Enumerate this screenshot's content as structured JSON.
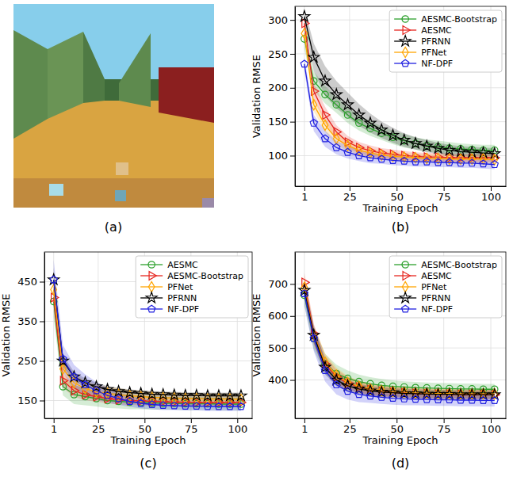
{
  "chart_data": [
    {
      "type": "image",
      "caption": "(a)"
    },
    {
      "type": "line",
      "caption": "(b)",
      "x_label": "Training Epoch",
      "y_label": "Validation RMSE",
      "x": [
        1,
        6,
        12,
        18,
        24,
        30,
        36,
        42,
        48,
        54,
        60,
        66,
        72,
        78,
        84,
        90,
        96,
        102
      ],
      "xlim": [
        -4,
        108
      ],
      "xticks": [
        1,
        25,
        50,
        75,
        100
      ],
      "ylim": [
        55,
        320
      ],
      "yticks": [
        100,
        150,
        200,
        250,
        300
      ],
      "grid": true,
      "legend": "upper right",
      "series": [
        {
          "name": "AESMC-Bootstrap",
          "color": "#2ca02c",
          "marker": "circle",
          "values": [
            272,
            210,
            190,
            175,
            160,
            148,
            140,
            133,
            127,
            122,
            118,
            115,
            113,
            111,
            110,
            109,
            108,
            108
          ],
          "error": [
            15,
            14,
            13,
            12,
            12,
            11,
            11,
            10,
            10,
            10,
            9,
            9,
            9,
            9,
            8,
            8,
            8,
            8
          ]
        },
        {
          "name": "AESMC",
          "color": "#e6261f",
          "marker": "triangle-right",
          "values": [
            295,
            195,
            160,
            135,
            120,
            112,
            107,
            104,
            102,
            100,
            99,
            98,
            98,
            97,
            97,
            97,
            97,
            97
          ],
          "error": [
            10,
            12,
            12,
            10,
            9,
            8,
            8,
            7,
            7,
            7,
            6,
            6,
            6,
            6,
            6,
            6,
            6,
            6
          ]
        },
        {
          "name": "PFRNN",
          "color": "#000000",
          "marker": "star",
          "values": [
            305,
            245,
            210,
            190,
            175,
            160,
            148,
            138,
            130,
            123,
            118,
            114,
            111,
            108,
            106,
            105,
            104,
            103
          ],
          "error": [
            12,
            20,
            22,
            20,
            18,
            16,
            14,
            12,
            11,
            10,
            9,
            9,
            8,
            8,
            8,
            8,
            8,
            8
          ]
        },
        {
          "name": "PFNet",
          "color": "#ffa500",
          "marker": "diamond",
          "values": [
            280,
            175,
            145,
            125,
            115,
            108,
            104,
            101,
            99,
            98,
            97,
            96,
            96,
            95,
            95,
            95,
            95,
            94
          ],
          "error": [
            10,
            10,
            10,
            9,
            8,
            7,
            7,
            6,
            6,
            6,
            6,
            6,
            6,
            6,
            6,
            6,
            6,
            6
          ]
        },
        {
          "name": "NF-DPF",
          "color": "#2020e0",
          "marker": "pentagon",
          "values": [
            235,
            148,
            125,
            112,
            105,
            100,
            97,
            95,
            93,
            92,
            91,
            91,
            90,
            90,
            89,
            89,
            88,
            87
          ],
          "error": [
            10,
            12,
            12,
            10,
            9,
            8,
            8,
            7,
            7,
            7,
            7,
            7,
            7,
            7,
            7,
            7,
            7,
            7
          ]
        }
      ]
    },
    {
      "type": "line",
      "caption": "(c)",
      "x_label": "Training Epoch",
      "y_label": "Validation RMSE",
      "x": [
        1,
        6,
        12,
        18,
        24,
        30,
        36,
        42,
        48,
        54,
        60,
        66,
        72,
        78,
        84,
        90,
        96,
        102
      ],
      "xlim": [
        -4,
        108
      ],
      "xticks": [
        1,
        25,
        50,
        75,
        100
      ],
      "ylim": [
        105,
        525
      ],
      "yticks": [
        150,
        250,
        350,
        450
      ],
      "grid": true,
      "legend": "upper right",
      "series": [
        {
          "name": "AESMC",
          "color": "#2ca02c",
          "marker": "circle",
          "values": [
            400,
            185,
            165,
            160,
            155,
            150,
            148,
            146,
            145,
            144,
            143,
            143,
            142,
            142,
            142,
            141,
            141,
            141
          ],
          "error": [
            40,
            22,
            24,
            22,
            20,
            19,
            18,
            18,
            17,
            17,
            16,
            16,
            16,
            16,
            16,
            16,
            16,
            16
          ]
        },
        {
          "name": "AESMC-Bootstrap",
          "color": "#e6261f",
          "marker": "triangle-right",
          "values": [
            410,
            200,
            175,
            165,
            160,
            155,
            152,
            150,
            149,
            148,
            147,
            146,
            146,
            145,
            145,
            145,
            145,
            145
          ],
          "error": [
            35,
            18,
            16,
            14,
            13,
            12,
            12,
            11,
            11,
            11,
            10,
            10,
            10,
            10,
            10,
            10,
            10,
            10
          ]
        },
        {
          "name": "PFNet",
          "color": "#ffa500",
          "marker": "diamond",
          "values": [
            430,
            230,
            195,
            180,
            172,
            168,
            165,
            162,
            160,
            158,
            157,
            156,
            155,
            155,
            154,
            154,
            154,
            153
          ],
          "error": [
            40,
            25,
            22,
            20,
            18,
            17,
            16,
            15,
            15,
            14,
            14,
            14,
            14,
            14,
            14,
            14,
            14,
            14
          ]
        },
        {
          "name": "PFRNN",
          "color": "#000000",
          "marker": "star",
          "values": [
            455,
            250,
            210,
            195,
            185,
            178,
            173,
            170,
            168,
            166,
            165,
            164,
            163,
            163,
            162,
            162,
            162,
            162
          ],
          "error": [
            30,
            15,
            12,
            11,
            10,
            9,
            9,
            8,
            8,
            8,
            8,
            8,
            8,
            8,
            8,
            8,
            8,
            8
          ]
        },
        {
          "name": "NF-DPF",
          "color": "#2020e0",
          "marker": "pentagon",
          "values": [
            455,
            255,
            210,
            190,
            175,
            163,
            155,
            148,
            143,
            140,
            138,
            137,
            136,
            136,
            135,
            135,
            135,
            135
          ],
          "error": [
            50,
            35,
            30,
            26,
            22,
            18,
            16,
            14,
            13,
            12,
            12,
            11,
            11,
            11,
            11,
            11,
            11,
            11
          ]
        }
      ]
    },
    {
      "type": "line",
      "caption": "(d)",
      "x_label": "Training Epoch",
      "y_label": "Validation RMSE",
      "x": [
        1,
        6,
        12,
        18,
        24,
        30,
        36,
        42,
        48,
        54,
        60,
        66,
        72,
        78,
        84,
        90,
        96,
        102
      ],
      "xlim": [
        -4,
        108
      ],
      "xticks": [
        1,
        25,
        50,
        75,
        100
      ],
      "ylim": [
        280,
        800
      ],
      "yticks": [
        400,
        500,
        600,
        700
      ],
      "grid": true,
      "legend": "upper right",
      "series": [
        {
          "name": "AESMC-Bootstrap",
          "color": "#2ca02c",
          "marker": "circle",
          "values": [
            665,
            530,
            450,
            420,
            405,
            395,
            388,
            383,
            380,
            378,
            376,
            375,
            374,
            373,
            372,
            372,
            371,
            371
          ],
          "error": [
            30,
            35,
            32,
            28,
            25,
            22,
            21,
            20,
            19,
            18,
            18,
            17,
            17,
            17,
            17,
            17,
            17,
            17
          ]
        },
        {
          "name": "AESMC",
          "color": "#e6261f",
          "marker": "triangle-right",
          "values": [
            705,
            545,
            450,
            410,
            390,
            378,
            370,
            365,
            362,
            360,
            358,
            357,
            356,
            356,
            355,
            355,
            355,
            354
          ],
          "error": [
            30,
            30,
            26,
            22,
            20,
            18,
            17,
            16,
            16,
            15,
            15,
            15,
            15,
            15,
            15,
            15,
            15,
            15
          ]
        },
        {
          "name": "PFNet",
          "color": "#ffa500",
          "marker": "diamond",
          "values": [
            690,
            540,
            455,
            415,
            392,
            380,
            372,
            367,
            364,
            362,
            360,
            359,
            358,
            358,
            357,
            357,
            357,
            357
          ],
          "error": [
            35,
            32,
            28,
            24,
            20,
            18,
            17,
            16,
            16,
            15,
            15,
            15,
            15,
            15,
            15,
            15,
            15,
            15
          ]
        },
        {
          "name": "PFRNN",
          "color": "#000000",
          "marker": "star",
          "values": [
            680,
            540,
            440,
            400,
            382,
            372,
            366,
            362,
            360,
            358,
            357,
            356,
            355,
            355,
            354,
            354,
            354,
            354
          ],
          "error": [
            25,
            25,
            22,
            20,
            18,
            16,
            15,
            15,
            14,
            14,
            14,
            14,
            14,
            14,
            14,
            14,
            14,
            14
          ]
        },
        {
          "name": "NF-DPF",
          "color": "#2020e0",
          "marker": "pentagon",
          "values": [
            670,
            530,
            430,
            385,
            365,
            355,
            350,
            346,
            343,
            341,
            340,
            339,
            338,
            338,
            337,
            337,
            336,
            336
          ],
          "error": [
            40,
            40,
            35,
            30,
            26,
            24,
            22,
            21,
            20,
            20,
            19,
            19,
            19,
            19,
            19,
            19,
            19,
            19
          ]
        }
      ]
    }
  ]
}
